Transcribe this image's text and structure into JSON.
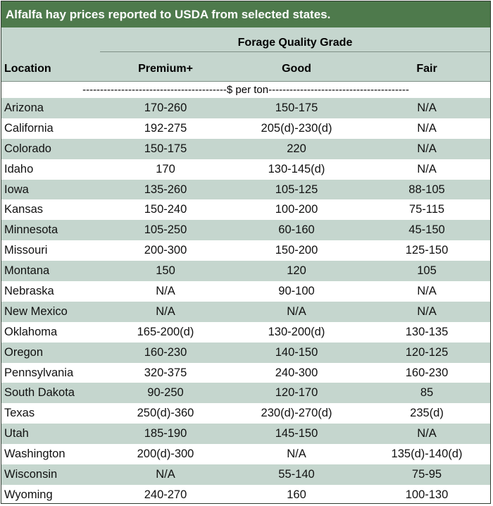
{
  "title": "Alfalfa hay prices reported to USDA from selected states.",
  "header": {
    "group": "Forage Quality Grade",
    "location": "Location",
    "columns": [
      "Premium+",
      "Good",
      "Fair"
    ]
  },
  "unit": "-----------------------------------------$ per ton----------------------------------------",
  "rows": [
    {
      "location": "Arizona",
      "premium": "170-260",
      "good": "150-175",
      "fair": "N/A"
    },
    {
      "location": "California",
      "premium": "192-275",
      "good": "205(d)-230(d)",
      "fair": "N/A"
    },
    {
      "location": "Colorado",
      "premium": "150-175",
      "good": "220",
      "fair": "N/A"
    },
    {
      "location": "Idaho",
      "premium": "170",
      "good": "130-145(d)",
      "fair": "N/A"
    },
    {
      "location": "Iowa",
      "premium": "135-260",
      "good": "105-125",
      "fair": "88-105"
    },
    {
      "location": "Kansas",
      "premium": "150-240",
      "good": "100-200",
      "fair": "75-115"
    },
    {
      "location": "Minnesota",
      "premium": "105-250",
      "good": "60-160",
      "fair": "45-150"
    },
    {
      "location": "Missouri",
      "premium": "200-300",
      "good": "150-200",
      "fair": "125-150"
    },
    {
      "location": "Montana",
      "premium": "150",
      "good": "120",
      "fair": "105"
    },
    {
      "location": "Nebraska",
      "premium": "N/A",
      "good": "90-100",
      "fair": "N/A"
    },
    {
      "location": "New Mexico",
      "premium": "N/A",
      "good": "N/A",
      "fair": "N/A"
    },
    {
      "location": "Oklahoma",
      "premium": "165-200(d)",
      "good": "130-200(d)",
      "fair": "130-135"
    },
    {
      "location": "Oregon",
      "premium": "160-230",
      "good": "140-150",
      "fair": "120-125"
    },
    {
      "location": "Pennsylvania",
      "premium": "320-375",
      "good": "240-300",
      "fair": "160-230"
    },
    {
      "location": "South Dakota",
      "premium": "90-250",
      "good": "120-170",
      "fair": "85"
    },
    {
      "location": "Texas",
      "premium": "250(d)-360",
      "good": "230(d)-270(d)",
      "fair": "235(d)"
    },
    {
      "location": "Utah",
      "premium": "185-190",
      "good": "145-150",
      "fair": "N/A"
    },
    {
      "location": "Washington",
      "premium": "200(d)-300",
      "good": "N/A",
      "fair": "135(d)-140(d)"
    },
    {
      "location": "Wisconsin",
      "premium": "N/A",
      "good": "55-140",
      "fair": "75-95"
    },
    {
      "location": "Wyoming",
      "premium": "240-270",
      "good": "160",
      "fair": "100-130"
    }
  ],
  "colors": {
    "title_bg": "#4e7a4c",
    "band": "#c5d6ce"
  }
}
